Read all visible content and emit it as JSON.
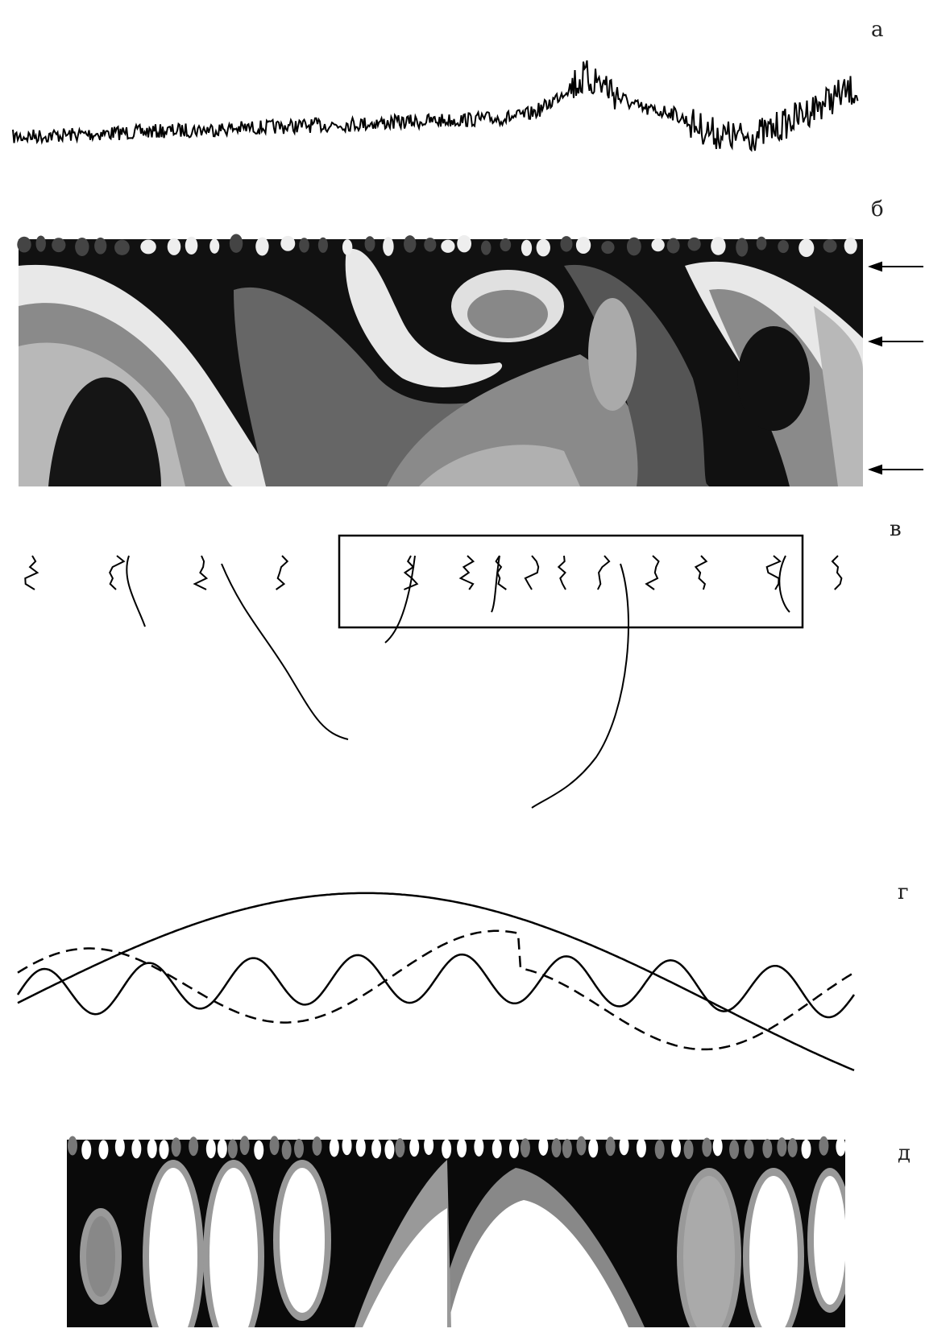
{
  "panels": [
    {
      "label": "а"
    },
    {
      "label": "б"
    },
    {
      "label": "в"
    },
    {
      "label": "г"
    },
    {
      "label": "д"
    }
  ]
}
